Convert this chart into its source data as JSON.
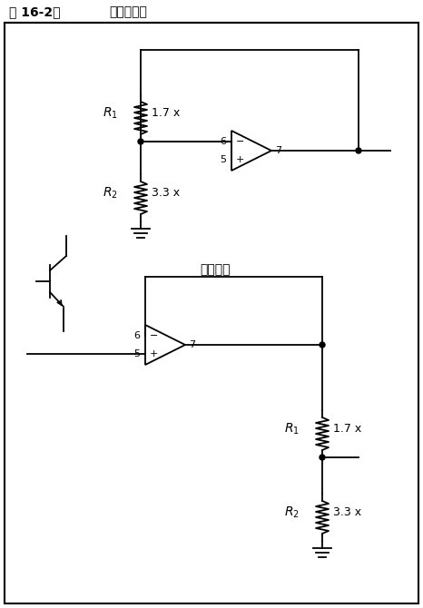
{
  "title_left": "图 16-2：",
  "title_right": "运放衰减器",
  "bg_color": "#ffffff",
  "line_color": "#000000",
  "figsize": [
    4.66,
    6.7
  ],
  "dpi": 100,
  "or_else": "（或者）"
}
